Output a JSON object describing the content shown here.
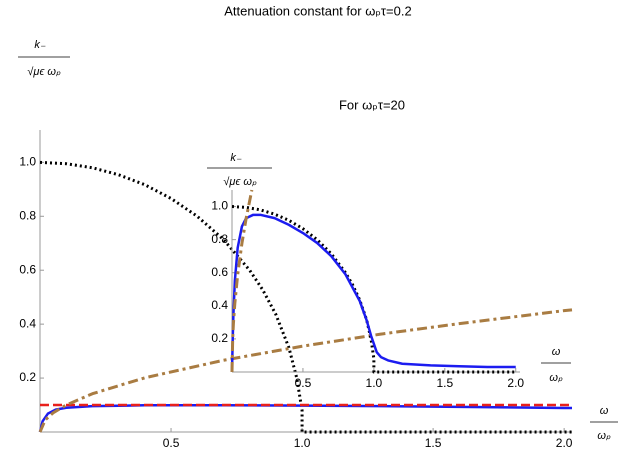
{
  "chart_data": [
    {
      "type": "line",
      "title": "Attenuation constant for ωₚτ=0.2",
      "ylabel": {
        "numerator": "k₋",
        "denominator": "√μϵ  ωₚ"
      },
      "xlabel": {
        "numerator": "ω",
        "denominator": "ωₚ"
      },
      "xlim": [
        0,
        2.03
      ],
      "ylim": [
        0,
        1.12
      ],
      "xticks": [
        0.5,
        {
          "value": 1,
          "label": "1.0"
        },
        1.5,
        {
          "value": 2,
          "label": "2.0"
        }
      ],
      "yticks": [
        0.2,
        0.4,
        0.6,
        0.8,
        {
          "value": 1,
          "label": "1.0"
        }
      ],
      "series": [
        {
          "color": "#000000",
          "style": "dotted",
          "x": [
            0,
            0.1,
            0.2,
            0.3,
            0.4,
            0.5,
            0.6,
            0.7,
            0.8,
            0.85,
            0.9,
            0.95,
            0.98,
            1.0,
            1.0,
            1.5,
            2.03
          ],
          "values": [
            1,
            0.995,
            0.98,
            0.954,
            0.917,
            0.866,
            0.8,
            0.714,
            0.6,
            0.527,
            0.436,
            0.312,
            0.199,
            0.08,
            0,
            0,
            0
          ]
        },
        {
          "color": "#1c1cf0",
          "style": "solid",
          "x": [
            0,
            0.01,
            0.03,
            0.06,
            0.1,
            0.2,
            0.4,
            0.7,
            1.0,
            1.3,
            1.6,
            2.0,
            2.03
          ],
          "values": [
            0,
            0.04,
            0.068,
            0.083,
            0.09,
            0.096,
            0.099,
            0.099,
            0.098,
            0.096,
            0.093,
            0.089,
            0.089
          ]
        },
        {
          "color": "#e8201c",
          "style": "dashed",
          "x": [
            0,
            2.03
          ],
          "values": [
            0.1,
            0.1
          ]
        },
        {
          "color": "#a97c42",
          "style": "dashdot",
          "x": [
            0,
            0.02,
            0.05,
            0.1,
            0.2,
            0.4,
            0.7,
            1.0,
            1.3,
            1.6,
            2.0,
            2.03
          ],
          "values": [
            0,
            0.045,
            0.071,
            0.1,
            0.142,
            0.201,
            0.266,
            0.318,
            0.363,
            0.402,
            0.45,
            0.453
          ]
        }
      ]
    },
    {
      "type": "line",
      "title": "For ωₚτ=20",
      "ylabel": {
        "numerator": "k₋",
        "denominator": "√μϵ  ωₚ"
      },
      "xlabel": {
        "numerator": "ω",
        "denominator": "ωₚ"
      },
      "xlim": [
        0,
        2.03
      ],
      "ylim": [
        0,
        1.1
      ],
      "xticks": [
        0.5,
        {
          "value": 1,
          "label": "1.0"
        },
        1.5,
        {
          "value": 2,
          "label": "2.0"
        }
      ],
      "yticks": [
        0.2,
        0.4,
        0.6,
        0.8,
        {
          "value": 1,
          "label": "1.0"
        }
      ],
      "series": [
        {
          "color": "#000000",
          "style": "dotted",
          "x": [
            0,
            0.1,
            0.2,
            0.3,
            0.4,
            0.5,
            0.6,
            0.7,
            0.8,
            0.85,
            0.9,
            0.95,
            0.98,
            1.0,
            1.0,
            1.5,
            2.0
          ],
          "values": [
            1,
            0.995,
            0.98,
            0.954,
            0.917,
            0.866,
            0.8,
            0.714,
            0.6,
            0.527,
            0.436,
            0.312,
            0.199,
            0.08,
            0,
            0,
            0
          ]
        },
        {
          "color": "#1c1cf0",
          "style": "solid",
          "x": [
            0,
            0.005,
            0.01,
            0.02,
            0.04,
            0.07,
            0.1,
            0.15,
            0.2,
            0.3,
            0.4,
            0.5,
            0.6,
            0.7,
            0.8,
            0.9,
            0.95,
            0.98,
            1.0,
            1.02,
            1.05,
            1.1,
            1.2,
            1.4,
            1.6,
            1.8,
            2.0
          ],
          "values": [
            0,
            0.2,
            0.35,
            0.55,
            0.75,
            0.88,
            0.93,
            0.95,
            0.95,
            0.93,
            0.89,
            0.84,
            0.78,
            0.7,
            0.59,
            0.43,
            0.31,
            0.22,
            0.17,
            0.12,
            0.09,
            0.07,
            0.05,
            0.04,
            0.035,
            0.03,
            0.03
          ]
        },
        {
          "color": "#a97c42",
          "style": "dashdot",
          "x": [
            0,
            0.005,
            0.01,
            0.02,
            0.04,
            0.07,
            0.1,
            0.14
          ],
          "values": [
            0,
            0.208,
            0.294,
            0.416,
            0.588,
            0.778,
            0.93,
            1.1
          ]
        }
      ]
    }
  ]
}
